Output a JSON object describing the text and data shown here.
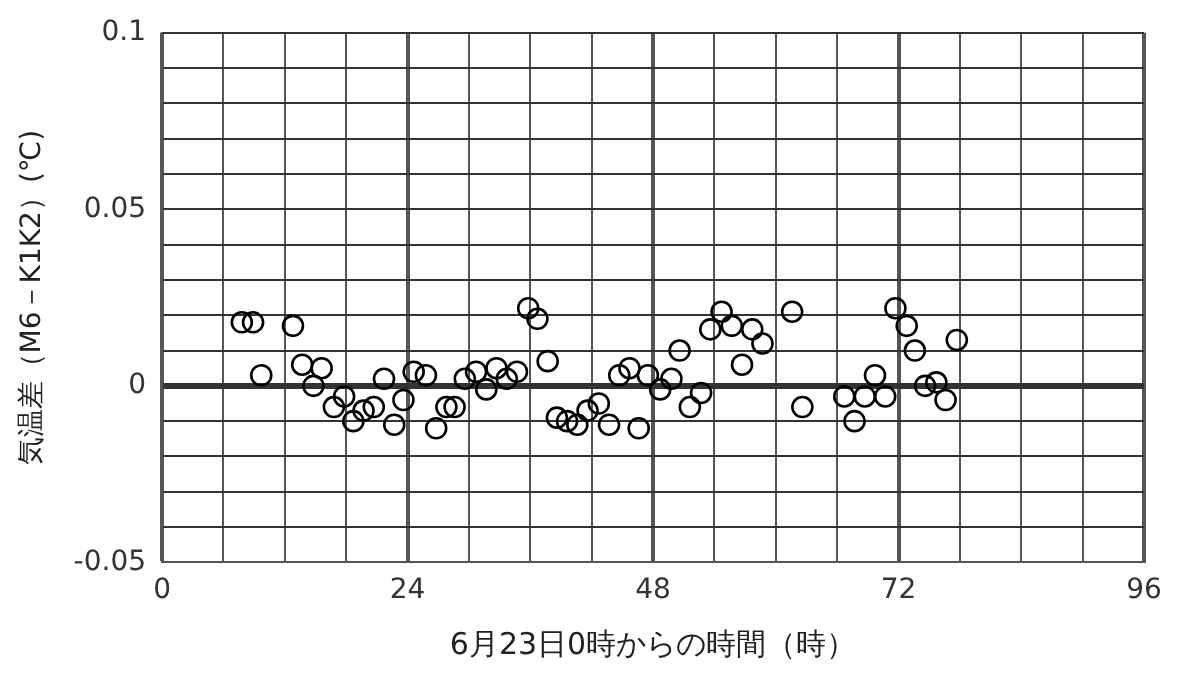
{
  "chart_data": {
    "type": "scatter",
    "xlabel": "6月23日0時からの時間（時）",
    "ylabel": "気温差（M6－K1K2）(℃)",
    "xlim": [
      0,
      96
    ],
    "ylim": [
      -0.05,
      0.1
    ],
    "xticks": [
      0,
      {
        "value": 6,
        "label": null
      },
      {
        "value": 12,
        "label": null
      },
      {
        "value": 18,
        "label": null
      },
      24,
      {
        "value": 30,
        "label": null
      },
      {
        "value": 36,
        "label": null
      },
      {
        "value": 42,
        "label": null
      },
      48,
      {
        "value": 54,
        "label": null
      },
      {
        "value": 60,
        "label": null
      },
      {
        "value": 66,
        "label": null
      },
      72,
      {
        "value": 78,
        "label": null
      },
      {
        "value": 84,
        "label": null
      },
      {
        "value": 90,
        "label": null
      },
      96
    ],
    "yticks": [
      {
        "value": -0.05,
        "label": "-0.05"
      },
      {
        "value": -0.04,
        "label": null
      },
      {
        "value": -0.03,
        "label": null
      },
      {
        "value": -0.02,
        "label": null
      },
      {
        "value": -0.01,
        "label": null
      },
      0,
      {
        "value": 0.01,
        "label": null
      },
      {
        "value": 0.02,
        "label": null
      },
      {
        "value": 0.03,
        "label": null
      },
      {
        "value": 0.04,
        "label": null
      },
      0.05,
      {
        "value": 0.06,
        "label": null
      },
      {
        "value": 0.07,
        "label": null
      },
      {
        "value": 0.08,
        "label": null
      },
      {
        "value": 0.09,
        "label": null
      },
      0.1
    ],
    "grid": true,
    "legend": false,
    "marker": "circle",
    "series": [
      {
        "color": "#000000",
        "x": [
          7.8,
          8.9,
          9.7,
          12.8,
          13.7,
          14.8,
          15.6,
          16.8,
          17.8,
          18.7,
          19.7,
          20.7,
          21.7,
          22.7,
          23.6,
          24.6,
          25.8,
          26.8,
          27.8,
          28.6,
          29.6,
          30.7,
          31.7,
          32.7,
          33.7,
          34.7,
          35.8,
          36.7,
          37.7,
          38.6,
          39.6,
          40.6,
          41.6,
          42.7,
          43.7,
          44.7,
          45.7,
          46.6,
          47.5,
          48.7,
          49.8,
          50.6,
          51.6,
          52.7,
          53.6,
          54.7,
          55.7,
          56.7,
          57.7,
          58.7,
          61.6,
          62.6,
          66.7,
          67.7,
          68.7,
          69.7,
          70.7,
          71.7,
          72.8,
          73.6,
          74.6,
          75.7,
          76.6,
          77.7
        ],
        "values": [
          0.018,
          0.018,
          0.003,
          0.017,
          0.006,
          0.0,
          0.005,
          -0.006,
          -0.003,
          -0.01,
          -0.007,
          -0.006,
          0.002,
          -0.011,
          -0.004,
          0.004,
          0.003,
          -0.012,
          -0.006,
          -0.006,
          0.002,
          0.004,
          -0.001,
          0.005,
          0.002,
          0.004,
          0.022,
          0.019,
          0.007,
          -0.009,
          -0.01,
          -0.011,
          -0.007,
          -0.005,
          -0.011,
          0.003,
          0.005,
          -0.012,
          0.003,
          -0.001,
          0.002,
          0.01,
          -0.006,
          -0.002,
          0.016,
          0.021,
          0.017,
          0.006,
          0.016,
          0.012,
          0.021,
          -0.006,
          -0.003,
          -0.01,
          -0.003,
          0.003,
          -0.003,
          0.022,
          0.017,
          0.01,
          0.0,
          0.001,
          -0.004,
          0.013
        ]
      }
    ]
  }
}
